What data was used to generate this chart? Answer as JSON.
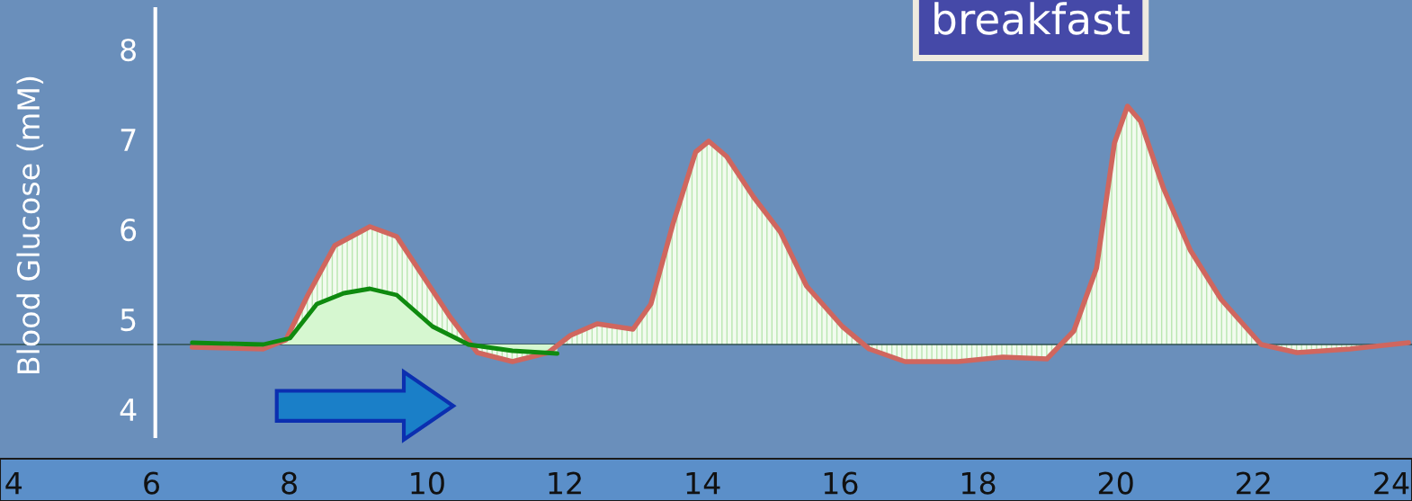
{
  "chart_data": {
    "type": "area",
    "title": "breakfast",
    "ylabel": "Blood Glucose (mM)",
    "xlim": [
      3.8,
      24.3
    ],
    "xticks": [
      4,
      6,
      8,
      10,
      12,
      14,
      16,
      18,
      20,
      22,
      24
    ],
    "ylim": [
      3.7,
      8.45
    ],
    "yticks": [
      4,
      5,
      6,
      7,
      8
    ],
    "grid": false,
    "ref_lines": [
      {
        "axis": "y",
        "value": 4.72,
        "color": "#2f4f4f"
      }
    ],
    "series": [
      {
        "color": "#d0665e",
        "x": [
          6.59,
          7.62,
          7.95,
          8.27,
          8.66,
          9.17,
          9.56,
          9.95,
          10.34,
          10.73,
          11.24,
          11.76,
          12.08,
          12.47,
          12.99,
          13.25,
          13.57,
          13.9,
          14.09,
          14.35,
          14.74,
          15.13,
          15.51,
          16.03,
          16.42,
          16.94,
          17.71,
          18.36,
          19.0,
          19.39,
          19.72,
          19.98,
          20.17,
          20.36,
          20.69,
          21.08,
          21.53,
          22.11,
          22.63,
          23.4,
          24.25
        ],
        "values": [
          4.69,
          4.67,
          4.77,
          5.27,
          5.82,
          6.03,
          5.92,
          5.47,
          5.02,
          4.63,
          4.53,
          4.63,
          4.82,
          4.95,
          4.89,
          5.17,
          6.06,
          6.86,
          6.98,
          6.81,
          6.36,
          5.97,
          5.37,
          4.92,
          4.67,
          4.53,
          4.53,
          4.58,
          4.56,
          4.87,
          5.57,
          6.96,
          7.37,
          7.2,
          6.46,
          5.77,
          5.22,
          4.72,
          4.63,
          4.67,
          4.74
        ]
      },
      {
        "color": "#0f8a0f",
        "x": [
          6.59,
          7.62,
          8.01,
          8.4,
          8.79,
          9.17,
          9.56,
          10.08,
          10.6,
          11.24,
          11.89
        ],
        "values": [
          4.74,
          4.72,
          4.79,
          5.17,
          5.29,
          5.34,
          5.27,
          4.92,
          4.72,
          4.65,
          4.62
        ]
      }
    ]
  }
}
